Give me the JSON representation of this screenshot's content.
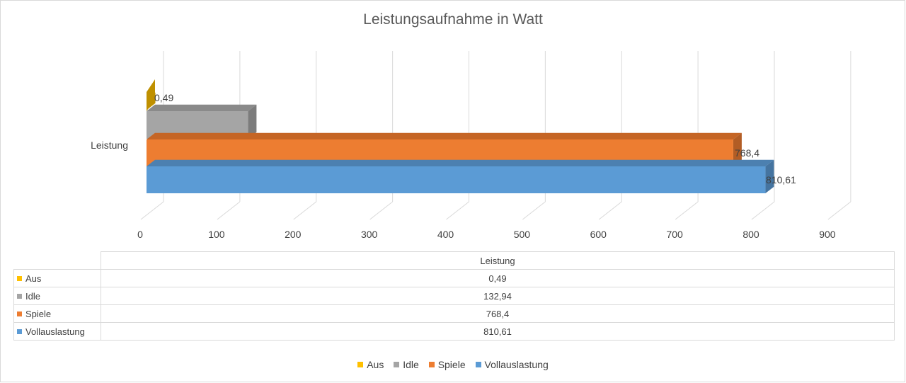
{
  "chart_data": {
    "type": "bar",
    "orientation": "horizontal",
    "three_d": true,
    "title": "Leistungsaufnahme in Watt",
    "categories": [
      "Leistung"
    ],
    "series": [
      {
        "name": "Aus",
        "values": [
          0.49
        ],
        "label": "0,49",
        "color": "#ffc000",
        "side": "#bf9000",
        "top": "#c9a000"
      },
      {
        "name": "Idle",
        "values": [
          132.94
        ],
        "label": "132,94",
        "color": "#a5a5a5",
        "side": "#7c7c7c",
        "top": "#8a8a8a"
      },
      {
        "name": "Spiele",
        "values": [
          768.4
        ],
        "label": "768,4",
        "color": "#ed7d31",
        "side": "#b25d25",
        "top": "#c56525"
      },
      {
        "name": "Vollauslastung",
        "values": [
          810.61
        ],
        "label": "810,61",
        "color": "#5b9bd5",
        "side": "#4574a0",
        "top": "#4c80b0"
      }
    ],
    "data_labels_shown": [
      "0,49",
      "",
      "768,4",
      "810,61"
    ],
    "xlim": [
      0,
      900
    ],
    "x_ticks": [
      "0",
      "100",
      "200",
      "300",
      "400",
      "500",
      "600",
      "700",
      "800",
      "900"
    ],
    "grid": true,
    "data_table": true,
    "legend_position": "bottom"
  },
  "table": {
    "header": "Leistung",
    "rows": [
      {
        "name": "Aus",
        "value": "0,49",
        "color": "#ffc000"
      },
      {
        "name": "Idle",
        "value": "132,94",
        "color": "#a5a5a5"
      },
      {
        "name": "Spiele",
        "value": "768,4",
        "color": "#ed7d31"
      },
      {
        "name": "Vollauslastung",
        "value": "810,61",
        "color": "#5b9bd5"
      }
    ]
  },
  "legend": [
    {
      "name": "Aus",
      "color": "#ffc000"
    },
    {
      "name": "Idle",
      "color": "#a5a5a5"
    },
    {
      "name": "Spiele",
      "color": "#ed7d31"
    },
    {
      "name": "Vollauslastung",
      "color": "#5b9bd5"
    }
  ]
}
